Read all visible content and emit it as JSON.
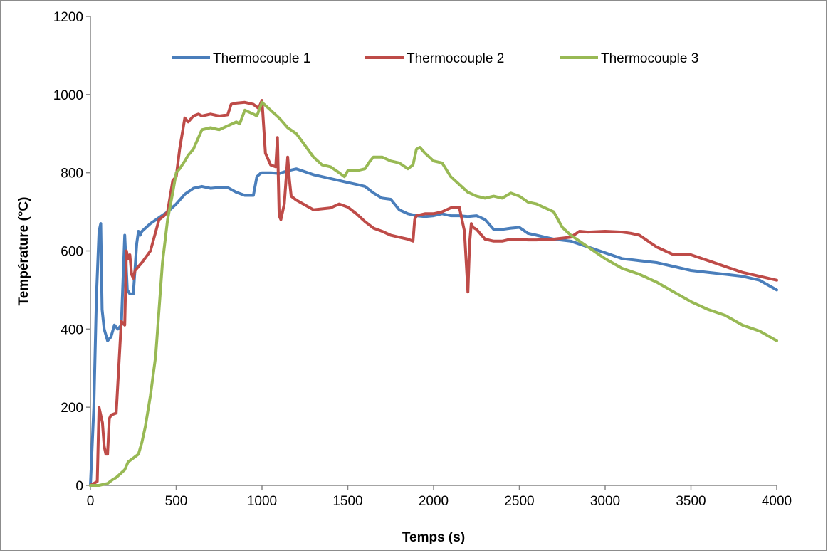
{
  "chart_data": {
    "type": "line",
    "xlabel": "Temps (s)",
    "ylabel": "Température (°C)",
    "xlim": [
      0,
      4000
    ],
    "ylim": [
      0,
      1200
    ],
    "x_ticks": [
      0,
      500,
      1000,
      1500,
      2000,
      2500,
      3000,
      3500,
      4000
    ],
    "y_ticks": [
      0,
      200,
      400,
      600,
      800,
      1000,
      1200
    ],
    "grid": false,
    "legend_position": "top",
    "series": [
      {
        "name": "Thermocouple 1",
        "color": "#4a7ebb",
        "x": [
          0,
          20,
          35,
          50,
          60,
          68,
          80,
          100,
          120,
          140,
          160,
          180,
          200,
          215,
          230,
          250,
          270,
          280,
          290,
          300,
          350,
          400,
          450,
          500,
          550,
          600,
          650,
          700,
          750,
          800,
          850,
          900,
          950,
          970,
          990,
          1000,
          1050,
          1100,
          1150,
          1200,
          1300,
          1400,
          1500,
          1550,
          1600,
          1650,
          1700,
          1750,
          1800,
          1850,
          1900,
          1950,
          2000,
          2050,
          2100,
          2150,
          2200,
          2250,
          2300,
          2350,
          2400,
          2450,
          2500,
          2550,
          2600,
          2650,
          2700,
          2800,
          2900,
          3000,
          3100,
          3200,
          3300,
          3400,
          3500,
          3600,
          3700,
          3800,
          3900,
          4000
        ],
        "y": [
          0,
          200,
          480,
          650,
          670,
          450,
          400,
          370,
          380,
          410,
          400,
          410,
          640,
          500,
          490,
          490,
          620,
          650,
          640,
          650,
          670,
          685,
          700,
          720,
          745,
          760,
          765,
          760,
          762,
          762,
          750,
          742,
          742,
          790,
          798,
          800,
          800,
          798,
          805,
          810,
          795,
          785,
          775,
          770,
          765,
          748,
          735,
          732,
          705,
          695,
          690,
          688,
          690,
          695,
          690,
          690,
          688,
          690,
          680,
          655,
          655,
          658,
          660,
          645,
          640,
          635,
          630,
          625,
          610,
          595,
          580,
          575,
          570,
          560,
          550,
          545,
          540,
          535,
          525,
          500
        ]
      },
      {
        "name": "Thermocouple 2",
        "color": "#be4b48",
        "x": [
          0,
          40,
          50,
          60,
          70,
          80,
          90,
          100,
          110,
          120,
          150,
          180,
          200,
          210,
          220,
          230,
          240,
          250,
          260,
          280,
          300,
          350,
          400,
          430,
          450,
          480,
          500,
          520,
          550,
          570,
          600,
          630,
          650,
          700,
          750,
          800,
          820,
          850,
          900,
          950,
          980,
          1000,
          1020,
          1050,
          1080,
          1090,
          1100,
          1110,
          1130,
          1150,
          1160,
          1170,
          1200,
          1300,
          1400,
          1450,
          1500,
          1550,
          1600,
          1650,
          1700,
          1750,
          1800,
          1850,
          1880,
          1890,
          1900,
          1950,
          2000,
          2050,
          2100,
          2150,
          2180,
          2200,
          2210,
          2220,
          2230,
          2250,
          2300,
          2350,
          2400,
          2450,
          2500,
          2550,
          2600,
          2700,
          2800,
          2850,
          2900,
          3000,
          3100,
          3150,
          3200,
          3300,
          3400,
          3500,
          3600,
          3700,
          3800,
          3900,
          4000
        ],
        "y": [
          0,
          10,
          200,
          180,
          160,
          100,
          80,
          80,
          170,
          180,
          185,
          420,
          410,
          600,
          580,
          590,
          540,
          530,
          550,
          560,
          570,
          600,
          680,
          690,
          700,
          780,
          790,
          860,
          940,
          930,
          945,
          950,
          945,
          950,
          945,
          948,
          975,
          978,
          980,
          975,
          965,
          985,
          850,
          820,
          815,
          890,
          690,
          680,
          720,
          840,
          780,
          740,
          730,
          705,
          710,
          720,
          712,
          695,
          675,
          658,
          650,
          640,
          635,
          630,
          625,
          680,
          690,
          695,
          695,
          700,
          710,
          712,
          650,
          495,
          620,
          670,
          660,
          655,
          630,
          625,
          625,
          630,
          630,
          628,
          628,
          630,
          635,
          650,
          648,
          650,
          648,
          645,
          640,
          610,
          590,
          590,
          575,
          560,
          545,
          535,
          525
        ]
      },
      {
        "name": "Thermocouple 3",
        "color": "#98b954",
        "x": [
          0,
          50,
          100,
          130,
          150,
          200,
          220,
          250,
          280,
          300,
          320,
          350,
          380,
          400,
          420,
          450,
          480,
          500,
          520,
          550,
          570,
          600,
          620,
          650,
          700,
          750,
          800,
          850,
          870,
          900,
          950,
          970,
          1000,
          1050,
          1100,
          1150,
          1200,
          1250,
          1300,
          1350,
          1400,
          1450,
          1480,
          1500,
          1550,
          1600,
          1630,
          1650,
          1700,
          1750,
          1800,
          1850,
          1880,
          1900,
          1920,
          1950,
          2000,
          2050,
          2100,
          2150,
          2200,
          2250,
          2300,
          2350,
          2400,
          2450,
          2500,
          2550,
          2600,
          2650,
          2700,
          2750,
          2800,
          2900,
          3000,
          3100,
          3200,
          3300,
          3400,
          3500,
          3600,
          3700,
          3800,
          3900,
          4000
        ],
        "y": [
          0,
          0,
          5,
          15,
          20,
          40,
          60,
          70,
          80,
          110,
          150,
          230,
          330,
          450,
          570,
          680,
          750,
          800,
          810,
          830,
          845,
          860,
          880,
          910,
          915,
          910,
          920,
          930,
          925,
          960,
          950,
          945,
          980,
          960,
          940,
          915,
          900,
          870,
          840,
          820,
          815,
          800,
          790,
          805,
          805,
          810,
          830,
          840,
          840,
          830,
          825,
          810,
          820,
          860,
          865,
          850,
          830,
          825,
          790,
          770,
          750,
          740,
          735,
          740,
          735,
          748,
          740,
          725,
          720,
          710,
          700,
          660,
          640,
          610,
          580,
          555,
          540,
          520,
          495,
          470,
          450,
          435,
          410,
          395,
          370
        ]
      }
    ]
  }
}
